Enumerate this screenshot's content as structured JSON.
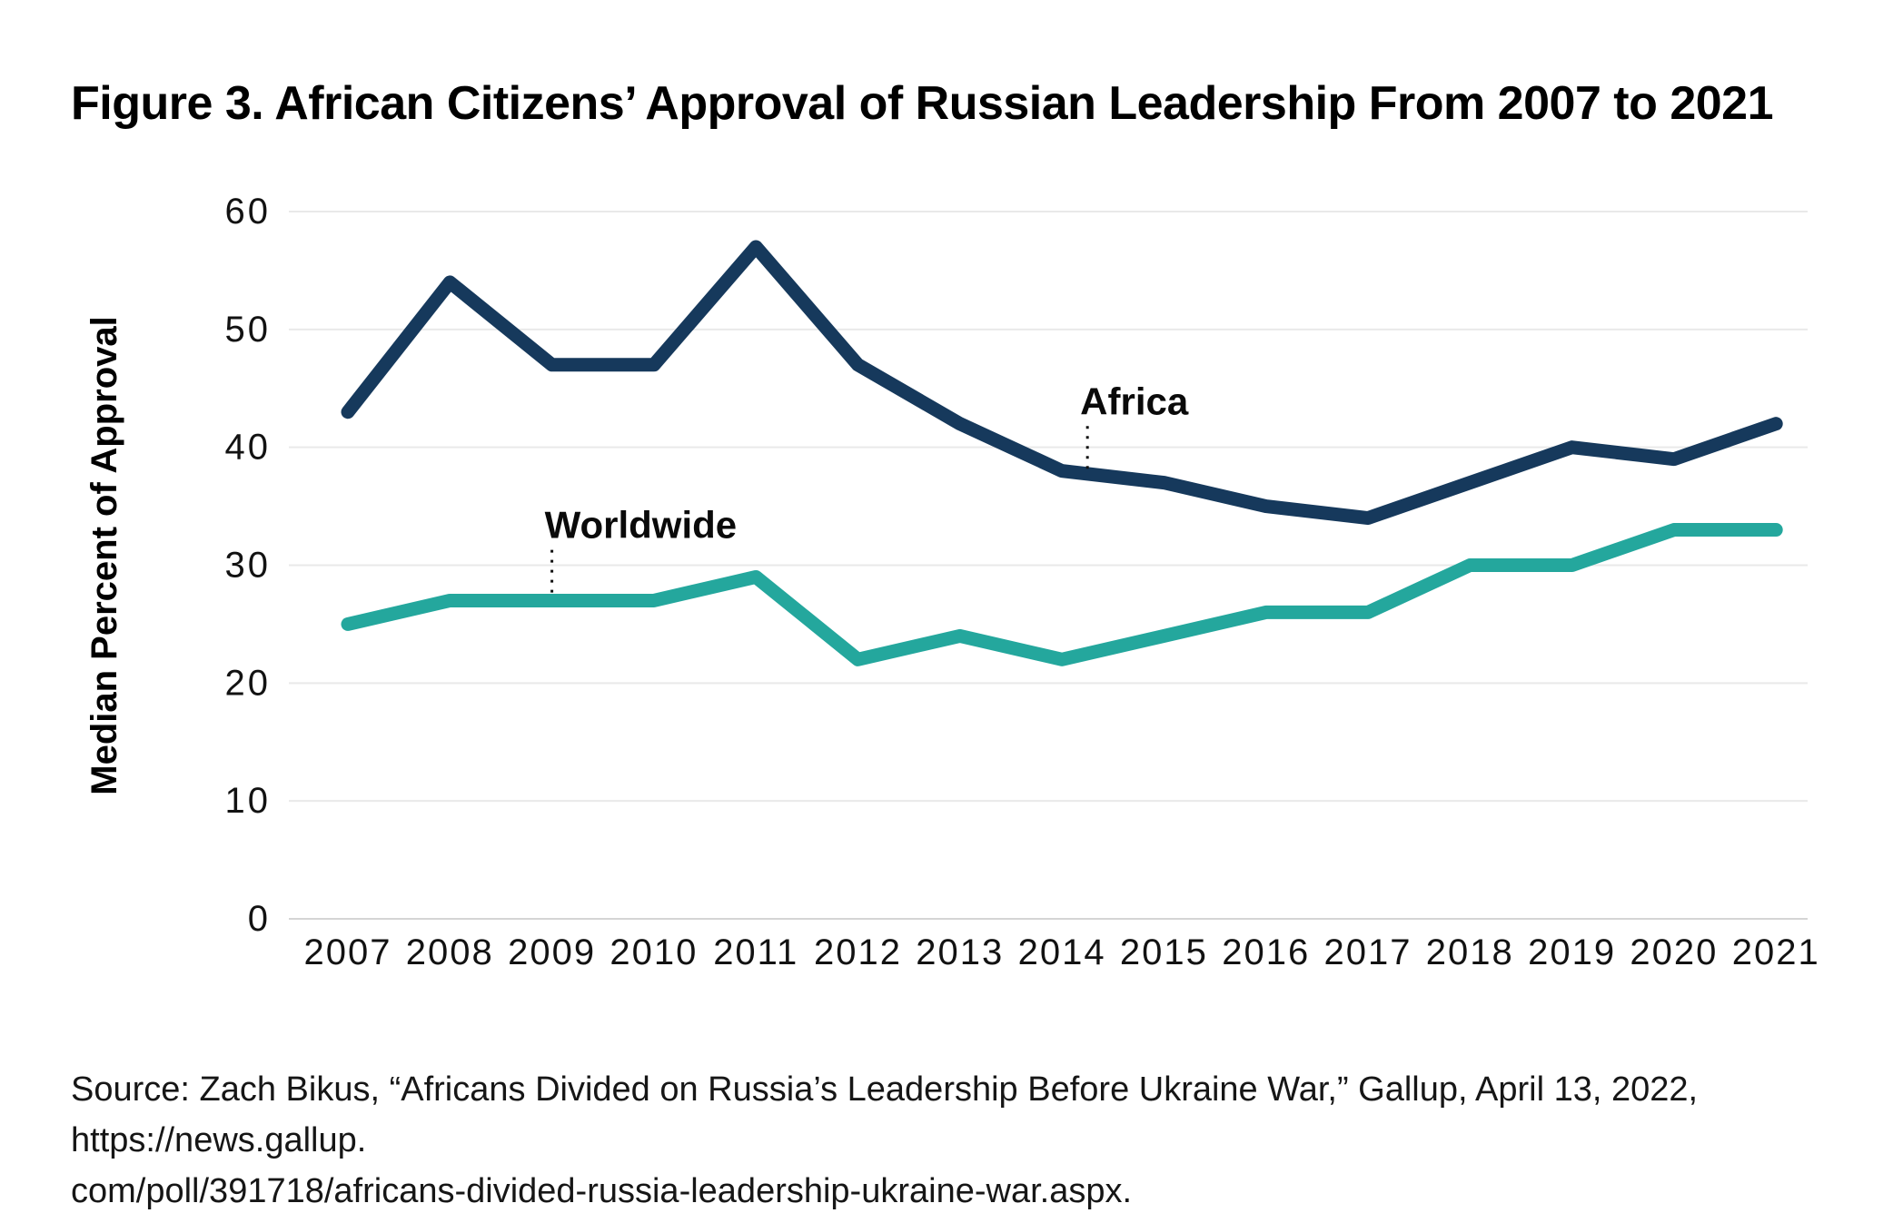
{
  "chart_data": {
    "type": "line",
    "title": "Figure 3. African Citizens’ Approval of Russian Leadership From 2007 to 2021",
    "xlabel": "",
    "ylabel": "Median Percent of Approval",
    "categories": [
      "2007",
      "2008",
      "2009",
      "2010",
      "2011",
      "2012",
      "2013",
      "2014",
      "2015",
      "2016",
      "2017",
      "2018",
      "2019",
      "2020",
      "2021"
    ],
    "ylim": [
      0,
      60
    ],
    "yticks": [
      0,
      10,
      20,
      30,
      40,
      50,
      60
    ],
    "grid": "horizontal",
    "legend": "inline-annotations",
    "series": [
      {
        "name": "Africa",
        "color": "#16395C",
        "values": [
          43,
          54,
          47,
          47,
          57,
          47,
          42,
          38,
          37,
          35,
          34,
          37,
          40,
          39,
          42
        ]
      },
      {
        "name": "Worldwide",
        "color": "#24A79D",
        "values": [
          25,
          27,
          27,
          27,
          29,
          22,
          24,
          22,
          24,
          26,
          26,
          30,
          30,
          33,
          33
        ]
      }
    ],
    "annotations": [
      {
        "label": "Africa",
        "x_year": 2014.25,
        "label_value": 42.8,
        "leader_from_value": 41.8,
        "leader_to_value": 38.1
      },
      {
        "label": "Worldwide",
        "x_year": 2009,
        "label_value": 32.3,
        "leader_from_value": 31.3,
        "leader_to_value": 27.6
      }
    ],
    "colors": {
      "gridline": "#E9E9E9",
      "baseline": "#D5D5D5",
      "tick_text": "#121212",
      "annotation_leader": "#111111"
    }
  },
  "source": {
    "lines": [
      "Source: Zach Bikus, “Africans Divided on Russia’s Leadership Before Ukraine War,” Gallup, April 13, 2022, https://news.gallup.",
      "com/poll/391718/africans-divided-russia-leadership-ukraine-war.aspx."
    ]
  }
}
